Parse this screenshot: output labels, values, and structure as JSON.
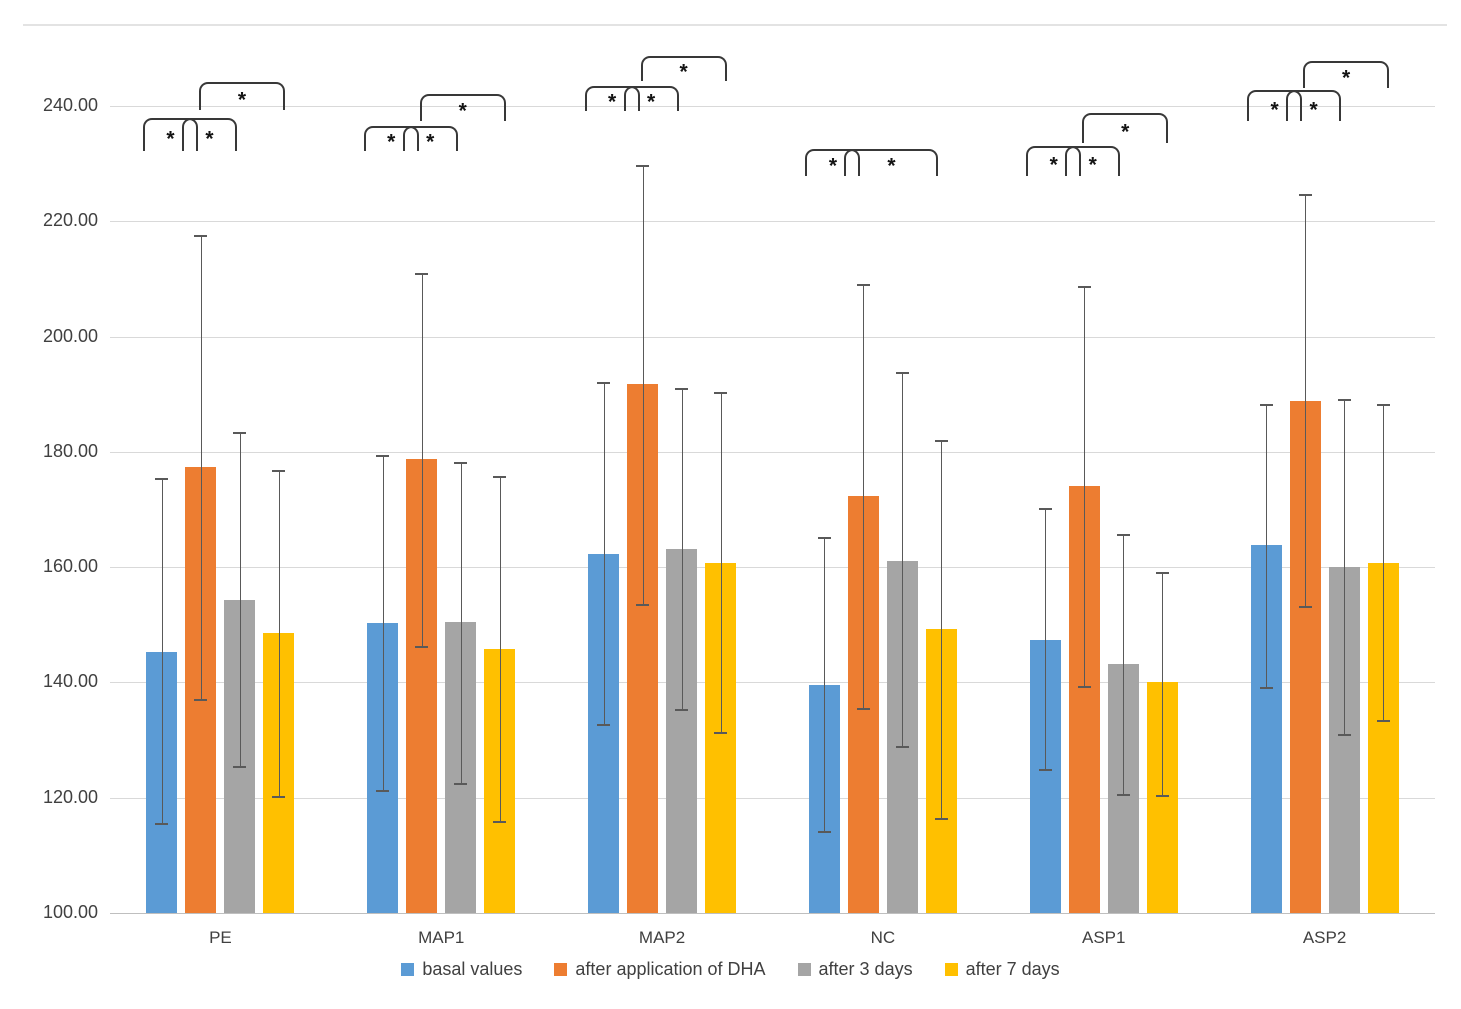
{
  "chart_data": {
    "type": "bar",
    "title": "",
    "xlabel": "",
    "ylabel": "",
    "grid": true,
    "legend_position": "bottom",
    "ylim": [
      100,
      252
    ],
    "yticks": [
      {
        "value": 100,
        "label": "100.00"
      },
      {
        "value": 120,
        "label": "120.00"
      },
      {
        "value": 140,
        "label": "140.00"
      },
      {
        "value": 160,
        "label": "160.00"
      },
      {
        "value": 180,
        "label": "180.00"
      },
      {
        "value": 200,
        "label": "200.00"
      },
      {
        "value": 220,
        "label": "220.00"
      },
      {
        "value": 240,
        "label": "240.00"
      }
    ],
    "categories": [
      "PE",
      "MAP1",
      "MAP2",
      "NC",
      "ASP1",
      "ASP2"
    ],
    "series": [
      {
        "name": "basal values",
        "color": "#5B9BD5",
        "values": [
          145.2,
          150.3,
          162.3,
          139.6,
          147.4,
          163.8
        ],
        "err_high": [
          175.4,
          179.4,
          192.1,
          165.2,
          170.2,
          188.3
        ],
        "err_low": [
          115.6,
          121.4,
          132.8,
          114.2,
          124.9,
          139.2
        ]
      },
      {
        "name": "after application of DHA",
        "color": "#ED7D31",
        "values": [
          177.4,
          178.8,
          191.8,
          172.4,
          174.1,
          188.9
        ],
        "err_high": [
          217.7,
          211.1,
          229.8,
          209.2,
          208.8,
          224.8
        ],
        "err_low": [
          137.1,
          146.4,
          153.6,
          135.5,
          139.4,
          153.2
        ]
      },
      {
        "name": "after 3 days",
        "color": "#A5A5A5",
        "values": [
          154.3,
          150.4,
          163.2,
          161.1,
          143.2,
          160.0
        ],
        "err_high": [
          183.5,
          178.3,
          191.1,
          193.8,
          165.8,
          189.2
        ],
        "err_low": [
          125.5,
          122.5,
          135.4,
          128.9,
          120.6,
          131.0
        ]
      },
      {
        "name": "after 7 days",
        "color": "#FFC000",
        "values": [
          148.5,
          145.8,
          160.7,
          149.2,
          140.0,
          160.8
        ],
        "err_high": [
          176.8,
          175.8,
          190.3,
          182.0,
          159.2,
          188.3
        ],
        "err_low": [
          120.3,
          115.9,
          131.4,
          116.4,
          120.5,
          133.4
        ]
      }
    ],
    "significance_brackets": [
      {
        "group": 0,
        "from_series": 0,
        "to_series": 1,
        "row": "lower",
        "label": "*",
        "v_top": 238.0,
        "v_bottom": 232.6
      },
      {
        "group": 0,
        "from_series": 1,
        "to_series": 2,
        "row": "lower",
        "label": "*",
        "v_top": 238.0,
        "v_bottom": 232.6
      },
      {
        "group": 0,
        "from_series": 1,
        "to_series": 3,
        "row": "upper",
        "label": "*",
        "v_top": 244.1,
        "v_bottom": 239.7
      },
      {
        "group": 1,
        "from_series": 0,
        "to_series": 1,
        "row": "lower",
        "label": "*",
        "v_top": 236.6,
        "v_bottom": 232.6
      },
      {
        "group": 1,
        "from_series": 1,
        "to_series": 2,
        "row": "lower",
        "label": "*",
        "v_top": 236.6,
        "v_bottom": 232.6
      },
      {
        "group": 1,
        "from_series": 1,
        "to_series": 3,
        "row": "upper",
        "label": "*",
        "v_top": 242.1,
        "v_bottom": 237.8
      },
      {
        "group": 2,
        "from_series": 0,
        "to_series": 1,
        "row": "lower",
        "label": "*",
        "v_top": 243.5,
        "v_bottom": 239.5
      },
      {
        "group": 2,
        "from_series": 1,
        "to_series": 2,
        "row": "lower",
        "label": "*",
        "v_top": 243.5,
        "v_bottom": 239.5
      },
      {
        "group": 2,
        "from_series": 1,
        "to_series": 3,
        "row": "upper",
        "label": "*",
        "v_top": 248.7,
        "v_bottom": 244.7
      },
      {
        "group": 3,
        "from_series": 0,
        "to_series": 1,
        "row": "lower",
        "label": "*",
        "v_top": 232.6,
        "v_bottom": 228.2
      },
      {
        "group": 3,
        "from_series": 1,
        "to_series": 3,
        "row": "lower",
        "label": "*",
        "v_top": 232.6,
        "v_bottom": 228.2
      },
      {
        "group": 4,
        "from_series": 0,
        "to_series": 1,
        "row": "lower",
        "label": "*",
        "v_top": 233.1,
        "v_bottom": 228.2
      },
      {
        "group": 4,
        "from_series": 1,
        "to_series": 2,
        "row": "lower",
        "label": "*",
        "v_top": 233.1,
        "v_bottom": 228.2
      },
      {
        "group": 4,
        "from_series": 1,
        "to_series": 3,
        "row": "upper",
        "label": "*",
        "v_top": 238.8,
        "v_bottom": 234.0
      },
      {
        "group": 5,
        "from_series": 0,
        "to_series": 1,
        "row": "lower",
        "label": "*",
        "v_top": 242.8,
        "v_bottom": 237.8
      },
      {
        "group": 5,
        "from_series": 1,
        "to_series": 2,
        "row": "lower",
        "label": "*",
        "v_top": 242.8,
        "v_bottom": 237.8
      },
      {
        "group": 5,
        "from_series": 1,
        "to_series": 3,
        "row": "upper",
        "label": "*",
        "v_top": 247.8,
        "v_bottom": 243.5
      }
    ],
    "colors": {
      "gridline": "#D9D9D9",
      "axis_line": "#BFBFBF",
      "error_bar": "#595959",
      "bracket": "#383838",
      "tick_text": "#404040"
    }
  }
}
